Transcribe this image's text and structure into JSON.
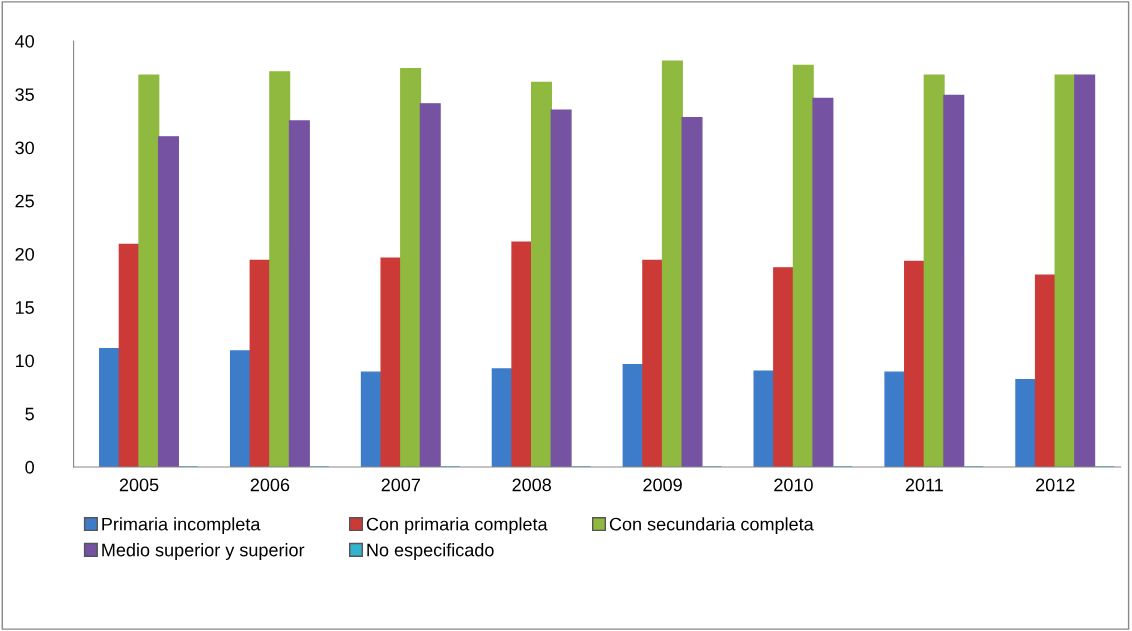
{
  "chart_data": {
    "type": "bar",
    "categories": [
      "2005",
      "2006",
      "2007",
      "2008",
      "2009",
      "2010",
      "2011",
      "2012"
    ],
    "series": [
      {
        "name": "Primaria incompleta",
        "color": "#3d7cc9",
        "values": [
          11.1,
          10.9,
          8.9,
          9.2,
          9.6,
          9.0,
          8.9,
          8.2
        ]
      },
      {
        "name": "Con primaria completa",
        "color": "#cc3a38",
        "values": [
          20.9,
          19.4,
          19.6,
          21.1,
          19.4,
          18.7,
          19.3,
          18.0
        ]
      },
      {
        "name": "Con secundaria completa",
        "color": "#8fb93f",
        "values": [
          36.8,
          37.1,
          37.4,
          36.1,
          38.1,
          37.7,
          36.8,
          36.8
        ]
      },
      {
        "name": "Medio superior y superior",
        "color": "#7652a3",
        "values": [
          31.0,
          32.5,
          34.1,
          33.5,
          32.8,
          34.6,
          34.9,
          36.8
        ]
      },
      {
        "name": "No especificado",
        "color": "#33b3cc",
        "values": [
          0,
          0,
          0,
          0,
          0,
          0,
          0,
          0
        ]
      }
    ],
    "ylim": [
      0,
      40
    ],
    "yticks": [
      0,
      5,
      10,
      15,
      20,
      25,
      30,
      35,
      40
    ],
    "legend": "bottom",
    "grid": false
  }
}
